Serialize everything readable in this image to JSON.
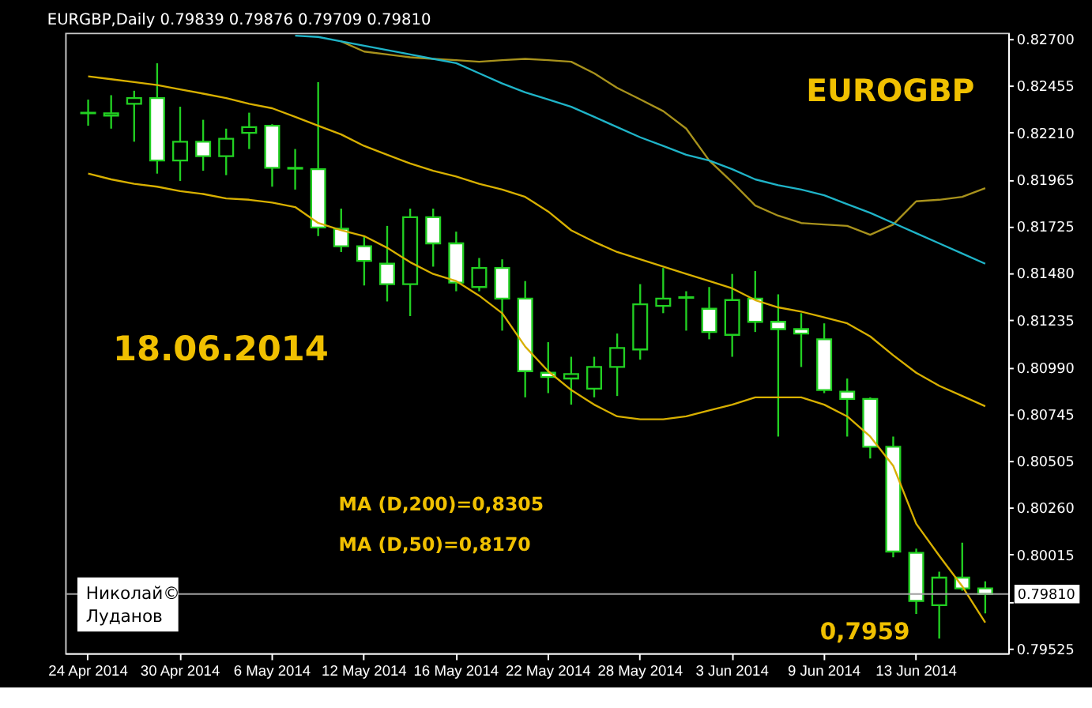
{
  "chart_data": {
    "type": "candlestick",
    "title": "EURGBP,Daily  0.79839 0.79876 0.79709 0.79810",
    "categories": [
      "24 Apr 2014",
      null,
      null,
      null,
      "30 Apr 2014",
      null,
      null,
      null,
      "6 May 2014",
      null,
      null,
      null,
      "12 May 2014",
      null,
      null,
      null,
      "16 May 2014",
      null,
      null,
      null,
      "22 May 2014",
      null,
      null,
      null,
      "28 May 2014",
      null,
      null,
      null,
      "3 Jun 2014",
      null,
      null,
      null,
      "9 Jun 2014",
      null,
      null,
      null,
      "13 Jun 2014",
      null,
      null,
      null
    ],
    "ohlc": [
      [
        0.82314,
        0.82382,
        0.82246,
        0.82311
      ],
      [
        0.82299,
        0.82405,
        0.82231,
        0.82311
      ],
      [
        0.8236,
        0.82428,
        0.82163,
        0.8239
      ],
      [
        0.8239,
        0.82571,
        0.81997,
        0.82065
      ],
      [
        0.82065,
        0.82345,
        0.81959,
        0.82163
      ],
      [
        0.82163,
        0.82277,
        0.82012,
        0.82088
      ],
      [
        0.82088,
        0.82231,
        0.81989,
        0.82178
      ],
      [
        0.82209,
        0.82314,
        0.82125,
        0.82239
      ],
      [
        0.82246,
        0.82254,
        0.81929,
        0.82027
      ],
      [
        0.82023,
        0.82125,
        0.81914,
        0.82027
      ],
      [
        0.8202,
        0.82473,
        0.81672,
        0.81717
      ],
      [
        0.8171,
        0.81815,
        0.81589,
        0.81619
      ],
      [
        0.81619,
        0.81672,
        0.81415,
        0.81543
      ],
      [
        0.81528,
        0.81725,
        0.81332,
        0.81422
      ],
      [
        0.81422,
        0.81815,
        0.81256,
        0.8177
      ],
      [
        0.8177,
        0.81815,
        0.81513,
        0.81634
      ],
      [
        0.81634,
        0.81695,
        0.81385,
        0.8143
      ],
      [
        0.81407,
        0.81558,
        0.81385,
        0.81506
      ],
      [
        0.81506,
        0.81551,
        0.8118,
        0.81347
      ],
      [
        0.81347,
        0.81438,
        0.80833,
        0.80969
      ],
      [
        0.80961,
        0.8112,
        0.80855,
        0.80939
      ],
      [
        0.80931,
        0.81044,
        0.80795,
        0.80954
      ],
      [
        0.80878,
        0.81044,
        0.80833,
        0.80991
      ],
      [
        0.80991,
        0.81165,
        0.8084,
        0.8109
      ],
      [
        0.81082,
        0.81422,
        0.81029,
        0.81317
      ],
      [
        0.81309,
        0.81506,
        0.81271,
        0.81347
      ],
      [
        0.81351,
        0.81385,
        0.8118,
        0.81354
      ],
      [
        0.81294,
        0.81407,
        0.81135,
        0.81173
      ],
      [
        0.81158,
        0.81475,
        0.81044,
        0.81339
      ],
      [
        0.81347,
        0.8149,
        0.81173,
        0.81226
      ],
      [
        0.81226,
        0.81369,
        0.80629,
        0.81188
      ],
      [
        0.81188,
        0.81271,
        0.80991,
        0.81165
      ],
      [
        0.81135,
        0.81218,
        0.80855,
        0.80871
      ],
      [
        0.80863,
        0.80931,
        0.80629,
        0.80825
      ],
      [
        0.80825,
        0.80833,
        0.80515,
        0.80576
      ],
      [
        0.80576,
        0.80629,
        0.80001,
        0.80031
      ],
      [
        0.80024,
        0.80046,
        0.79706,
        0.79774
      ],
      [
        0.79752,
        0.79926,
        0.79578,
        0.79895
      ],
      [
        0.79895,
        0.80077,
        0.79827,
        0.79839
      ],
      [
        0.79839,
        0.79876,
        0.79709,
        0.7981
      ]
    ],
    "series": [
      {
        "type": "line",
        "color": "#a8921c",
        "values": [
          null,
          null,
          null,
          null,
          null,
          null,
          null,
          null,
          null,
          null,
          null,
          0.82685,
          0.82632,
          0.82617,
          0.82602,
          0.82594,
          0.82587,
          0.82579,
          0.82587,
          0.82594,
          0.82587,
          0.82579,
          0.82519,
          0.82443,
          0.82383,
          0.82322,
          0.82231,
          0.82065,
          0.81952,
          0.81831,
          0.81778,
          0.8174,
          0.81732,
          0.81725,
          0.81679,
          0.81732,
          0.81853,
          0.81861,
          0.81876,
          0.81921
        ]
      },
      {
        "type": "line",
        "color": "#d8b000",
        "values": [
          0.82503,
          0.82488,
          0.82473,
          0.82458,
          0.82435,
          0.82413,
          0.8239,
          0.8236,
          0.82337,
          0.82292,
          0.82246,
          0.82201,
          0.82141,
          0.82095,
          0.8205,
          0.82012,
          0.81982,
          0.81944,
          0.81914,
          0.81876,
          0.818,
          0.81702,
          0.81642,
          0.81589,
          0.81551,
          0.81513,
          0.81475,
          0.81438,
          0.814,
          0.81339,
          0.81301,
          0.81279,
          0.81249,
          0.81218,
          0.8115,
          0.81052,
          0.80961,
          0.80893,
          0.8084,
          0.80787
        ]
      },
      {
        "type": "line",
        "color": "#d8b000",
        "values": [
          0.81997,
          0.81967,
          0.81944,
          0.81929,
          0.81906,
          0.81891,
          0.81868,
          0.81861,
          0.81846,
          0.81823,
          0.8174,
          0.81702,
          0.81672,
          0.81611,
          0.81536,
          0.81475,
          0.81438,
          0.81362,
          0.81271,
          0.81097,
          0.80969,
          0.80871,
          0.80795,
          0.80734,
          0.80719,
          0.80719,
          0.80734,
          0.80765,
          0.80795,
          0.80833,
          0.80833,
          0.80833,
          0.80795,
          0.80734,
          0.80629,
          0.80477,
          0.80175,
          0.80009,
          0.7985,
          0.79661
        ]
      },
      {
        "type": "line",
        "color": "#1fb4c8",
        "values": [
          null,
          null,
          null,
          null,
          null,
          null,
          null,
          null,
          null,
          0.82715,
          0.82708,
          0.82685,
          0.82662,
          0.8264,
          0.82617,
          0.82594,
          0.82572,
          0.82519,
          0.82466,
          0.8242,
          0.82383,
          0.82345,
          0.82292,
          0.82239,
          0.82186,
          0.82141,
          0.82095,
          0.82065,
          0.8202,
          0.81967,
          0.81937,
          0.81914,
          0.81884,
          0.81838,
          0.81793,
          0.8174,
          0.81687,
          0.81634,
          0.81581,
          0.81528
        ]
      }
    ],
    "ref_lines": [
      {
        "axis": "y",
        "value": 0.7981,
        "label": "0.79810",
        "color": "#a0a0a0"
      }
    ],
    "annotations": [
      "EUROGBP",
      "18.06.2014",
      "MA (D,200)=0,8305",
      "MA (D,50)=0,8170",
      "0,7959",
      "Николай©",
      "Луданов"
    ],
    "ylim": [
      0.79502,
      0.8273
    ],
    "yticks": [
      {
        "value": 0.827,
        "label": "0.82700"
      },
      {
        "value": 0.82455,
        "label": "0.82455"
      },
      {
        "value": 0.8221,
        "label": "0.82210"
      },
      {
        "value": 0.81965,
        "label": "0.81965"
      },
      {
        "value": 0.81725,
        "label": "0.81725"
      },
      {
        "value": 0.8148,
        "label": "0.81480"
      },
      {
        "value": 0.81235,
        "label": "0.81235"
      },
      {
        "value": 0.8099,
        "label": "0.80990"
      },
      {
        "value": 0.80745,
        "label": "0.80745"
      },
      {
        "value": 0.80505,
        "label": "0.80505"
      },
      {
        "value": 0.8026,
        "label": "0.80260"
      },
      {
        "value": 0.80015,
        "label": "0.80015"
      },
      {
        "value": 0.7977,
        "label": null
      },
      {
        "value": 0.79525,
        "label": "0.79525"
      }
    ]
  }
}
